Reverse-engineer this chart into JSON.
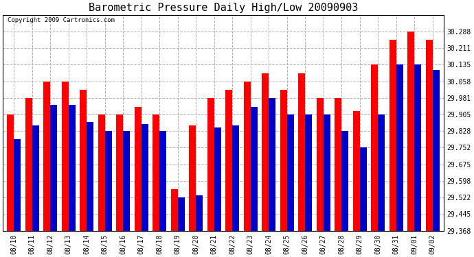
{
  "title": "Barometric Pressure Daily High/Low 20090903",
  "copyright": "Copyright 2009 Cartronics.com",
  "dates": [
    "08/10",
    "08/11",
    "08/12",
    "08/13",
    "08/14",
    "08/15",
    "08/16",
    "08/17",
    "08/18",
    "08/19",
    "08/20",
    "08/21",
    "08/22",
    "08/23",
    "08/24",
    "08/25",
    "08/26",
    "08/27",
    "08/28",
    "08/29",
    "08/30",
    "08/31",
    "09/01",
    "09/02"
  ],
  "highs": [
    29.905,
    29.981,
    30.058,
    30.058,
    30.02,
    29.905,
    29.905,
    29.94,
    29.905,
    29.56,
    29.855,
    29.981,
    30.02,
    30.058,
    30.096,
    30.02,
    30.096,
    29.981,
    29.981,
    29.92,
    30.135,
    30.25,
    30.288,
    30.25
  ],
  "lows": [
    29.79,
    29.855,
    29.95,
    29.95,
    29.87,
    29.828,
    29.828,
    29.86,
    29.828,
    29.522,
    29.53,
    29.845,
    29.855,
    29.94,
    29.981,
    29.905,
    29.905,
    29.905,
    29.828,
    29.752,
    29.905,
    30.135,
    30.135,
    30.112
  ],
  "ylim_min": 29.368,
  "ylim_max": 30.365,
  "yticks": [
    29.368,
    29.445,
    29.522,
    29.598,
    29.675,
    29.752,
    29.828,
    29.905,
    29.981,
    30.058,
    30.135,
    30.211,
    30.288
  ],
  "high_color": "#ff0000",
  "low_color": "#0000cc",
  "bg_color": "#ffffff",
  "plot_bg_color": "#ffffff",
  "grid_color": "#b0b0b0",
  "title_fontsize": 11,
  "copyright_fontsize": 6.5,
  "tick_fontsize": 7
}
